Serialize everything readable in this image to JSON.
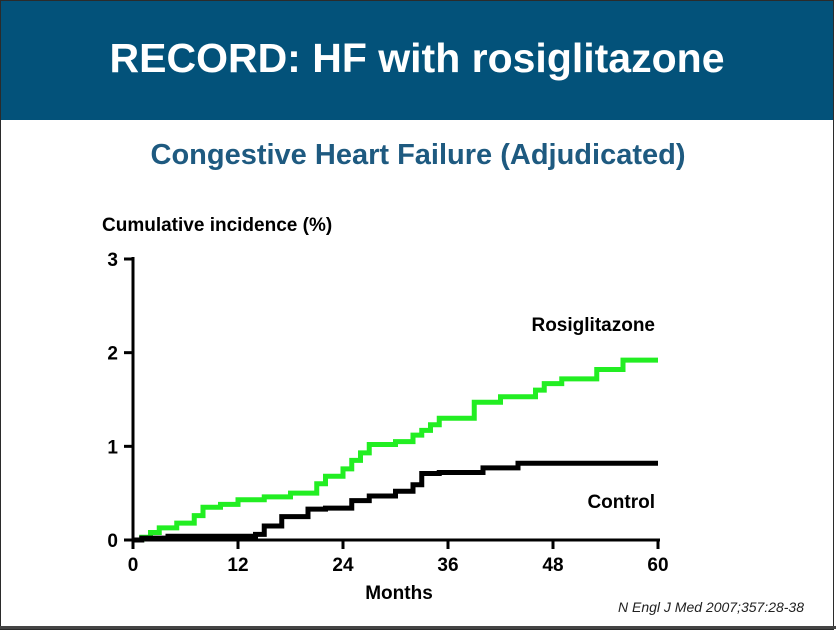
{
  "slide": {
    "title": "RECORD: HF with rosiglitazone",
    "subtitle": "Congestive Heart Failure (Adjudicated)",
    "citation": "N Engl J Med 2007;357:28-38"
  },
  "colors": {
    "header_bg": "#03527a",
    "subtitle": "#1e5a80",
    "rosiglitazone": "#22ee22",
    "control": "#000000"
  },
  "chart_data": {
    "type": "line",
    "title": "Congestive Heart Failure (Adjudicated)",
    "ylabel": "Cumulative incidence (%)",
    "xlabel": "Months",
    "xlim": [
      0,
      60
    ],
    "ylim": [
      0,
      3
    ],
    "xticks": [
      0,
      12,
      24,
      36,
      48,
      60
    ],
    "yticks": [
      0,
      1,
      2,
      3
    ],
    "grid": false,
    "step": true,
    "series": [
      {
        "name": "Rosiglitazone",
        "color": "#22ee22",
        "x": [
          0,
          1,
          2,
          3,
          5,
          7,
          8,
          10,
          12,
          15,
          18,
          21,
          22,
          24,
          25,
          26,
          27,
          30,
          32,
          33,
          34,
          35,
          39,
          42,
          46,
          47,
          49,
          53,
          56,
          60
        ],
        "y": [
          0,
          0.03,
          0.08,
          0.13,
          0.18,
          0.26,
          0.35,
          0.38,
          0.43,
          0.46,
          0.5,
          0.6,
          0.68,
          0.76,
          0.85,
          0.93,
          1.02,
          1.05,
          1.12,
          1.17,
          1.23,
          1.3,
          1.47,
          1.53,
          1.6,
          1.67,
          1.72,
          1.82,
          1.92,
          1.92
        ]
      },
      {
        "name": "Control",
        "color": "#000000",
        "x": [
          0,
          1,
          4,
          14,
          15,
          17,
          20,
          22,
          25,
          27,
          30,
          32,
          33,
          35,
          40,
          44,
          60
        ],
        "y": [
          0,
          0.02,
          0.04,
          0.06,
          0.15,
          0.25,
          0.33,
          0.34,
          0.42,
          0.47,
          0.52,
          0.59,
          0.71,
          0.72,
          0.77,
          0.82,
          0.82
        ]
      }
    ],
    "annotations": [
      "Rosiglitazone",
      "Control"
    ]
  }
}
